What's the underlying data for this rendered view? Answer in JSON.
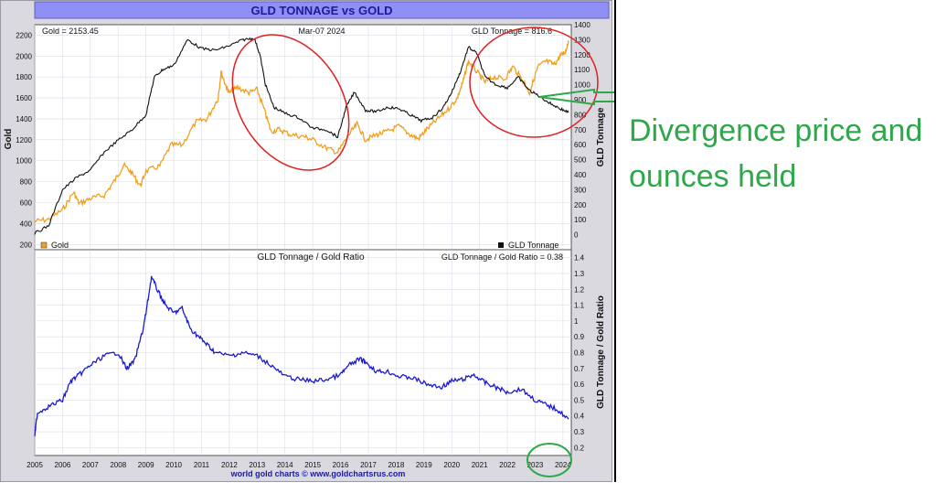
{
  "chart_data": [
    {
      "type": "line",
      "title": "GLD TONNAGE vs GOLD",
      "date_label": "Mar-07  2024",
      "readouts": {
        "left": "Gold = 2153.45",
        "right": "GLD Tonnage = 816.6"
      },
      "ylabel_left": "Gold",
      "ylabel_right": "GLD Tonnage",
      "ylim_left": [
        150,
        2300
      ],
      "ylim_right": [
        -100,
        1400
      ],
      "yticks_left": [
        "200",
        "400",
        "600",
        "800",
        "1000",
        "1200",
        "1400",
        "1600",
        "1800",
        "2000",
        "2200"
      ],
      "yticks_right": [
        "0",
        "100",
        "200",
        "300",
        "400",
        "500",
        "600",
        "700",
        "800",
        "900",
        "1000",
        "1100",
        "1200",
        "1300",
        "1400"
      ],
      "legend": {
        "gold": "Gold",
        "tonnage": "GLD Tonnage"
      },
      "series": [
        {
          "name": "Gold",
          "axis": "left",
          "color": "#f0a020",
          "x": [
            2005.0,
            2005.5,
            2006.0,
            2006.4,
            2006.6,
            2007.0,
            2007.5,
            2007.9,
            2008.2,
            2008.5,
            2008.8,
            2009.0,
            2009.5,
            2009.9,
            2010.3,
            2010.8,
            2011.2,
            2011.6,
            2011.7,
            2011.9,
            2012.0,
            2012.3,
            2012.7,
            2013.0,
            2013.3,
            2013.5,
            2013.8,
            2014.2,
            2014.7,
            2015.0,
            2015.5,
            2015.9,
            2016.3,
            2016.6,
            2016.9,
            2017.3,
            2017.7,
            2018.1,
            2018.5,
            2018.8,
            2019.1,
            2019.5,
            2019.9,
            2020.2,
            2020.4,
            2020.6,
            2020.9,
            2021.2,
            2021.5,
            2021.9,
            2022.2,
            2022.6,
            2022.8,
            2023.1,
            2023.4,
            2023.7,
            2023.9,
            2024.1,
            2024.2
          ],
          "y": [
            420,
            440,
            530,
            700,
            590,
            640,
            670,
            820,
            960,
            880,
            760,
            900,
            950,
            1150,
            1150,
            1370,
            1400,
            1600,
            1850,
            1700,
            1650,
            1700,
            1650,
            1680,
            1450,
            1280,
            1300,
            1250,
            1230,
            1200,
            1120,
            1080,
            1250,
            1350,
            1200,
            1250,
            1280,
            1330,
            1250,
            1210,
            1300,
            1400,
            1500,
            1600,
            1750,
            1950,
            1850,
            1750,
            1800,
            1780,
            1900,
            1750,
            1650,
            1900,
            1950,
            1920,
            2000,
            2050,
            2150
          ]
        },
        {
          "name": "GLD Tonnage",
          "axis": "right",
          "color": "#111111",
          "x": [
            2005.0,
            2005.5,
            2006.0,
            2006.5,
            2007.0,
            2007.5,
            2008.0,
            2008.5,
            2009.0,
            2009.3,
            2009.6,
            2010.0,
            2010.5,
            2011.0,
            2011.5,
            2012.0,
            2012.5,
            2012.9,
            2013.1,
            2013.3,
            2013.6,
            2014.0,
            2014.5,
            2015.0,
            2015.5,
            2015.9,
            2016.2,
            2016.5,
            2016.9,
            2017.3,
            2017.7,
            2018.1,
            2018.5,
            2018.9,
            2019.3,
            2019.7,
            2020.0,
            2020.3,
            2020.6,
            2020.9,
            2021.2,
            2021.6,
            2022.0,
            2022.4,
            2022.8,
            2023.1,
            2023.5,
            2023.9,
            2024.2
          ],
          "y": [
            10,
            60,
            300,
            380,
            430,
            550,
            630,
            700,
            800,
            1050,
            1100,
            1130,
            1300,
            1240,
            1230,
            1260,
            1300,
            1310,
            1200,
            1000,
            850,
            810,
            780,
            710,
            700,
            650,
            850,
            950,
            830,
            820,
            850,
            840,
            800,
            760,
            780,
            850,
            950,
            1080,
            1250,
            1210,
            1050,
            1000,
            980,
            1050,
            960,
            930,
            880,
            840,
            815
          ]
        }
      ]
    },
    {
      "type": "line",
      "title": "GLD Tonnage / Gold Ratio",
      "readout": "GLD Tonnage / Gold Ratio = 0.38",
      "ylabel": "GLD Tonnage / Gold Ratio",
      "ylim": [
        0.15,
        1.45
      ],
      "yticks": [
        "0.2",
        "0.3",
        "0.4",
        "0.5",
        "0.6",
        "0.7",
        "0.8",
        "0.9",
        "1",
        "1.1",
        "1.2",
        "1.3",
        "1.4"
      ],
      "xlim": [
        2005.0,
        2024.3
      ],
      "xticks": [
        "2005",
        "2006",
        "2007",
        "2008",
        "2009",
        "2010",
        "2011",
        "2012",
        "2013",
        "2014",
        "2015",
        "2016",
        "2017",
        "2018",
        "2019",
        "2020",
        "2021",
        "2022",
        "2023",
        "2024"
      ],
      "series": [
        {
          "name": "GLD Tonnage / Gold Ratio",
          "color": "#1a1ad0",
          "x": [
            2005.0,
            2005.1,
            2005.5,
            2006.0,
            2006.3,
            2006.6,
            2007.0,
            2007.5,
            2008.0,
            2008.3,
            2008.6,
            2008.9,
            2009.0,
            2009.2,
            2009.4,
            2009.7,
            2010.0,
            2010.3,
            2010.6,
            2010.9,
            2011.2,
            2011.5,
            2012.0,
            2012.5,
            2013.0,
            2013.5,
            2014.0,
            2014.5,
            2015.0,
            2015.5,
            2016.0,
            2016.3,
            2016.7,
            2016.9,
            2017.3,
            2017.7,
            2018.1,
            2018.6,
            2019.1,
            2019.6,
            2020.0,
            2020.4,
            2020.8,
            2021.2,
            2021.6,
            2022.0,
            2022.5,
            2023.0,
            2023.4,
            2023.8,
            2024.2
          ],
          "y": [
            0.28,
            0.42,
            0.46,
            0.5,
            0.62,
            0.66,
            0.72,
            0.78,
            0.8,
            0.7,
            0.75,
            0.95,
            1.05,
            1.28,
            1.2,
            1.1,
            1.05,
            1.08,
            0.95,
            0.9,
            0.85,
            0.8,
            0.78,
            0.8,
            0.78,
            0.72,
            0.65,
            0.63,
            0.62,
            0.63,
            0.66,
            0.72,
            0.76,
            0.74,
            0.68,
            0.68,
            0.65,
            0.64,
            0.6,
            0.58,
            0.62,
            0.63,
            0.66,
            0.61,
            0.58,
            0.55,
            0.57,
            0.5,
            0.47,
            0.44,
            0.38
          ]
        }
      ]
    }
  ],
  "footer": "world gold charts © www.goldchartsrus.com",
  "annotation": {
    "line1": "Divergence price and",
    "line2": "ounces held"
  },
  "colors": {
    "frame": "#d9d9df",
    "title_bar": "#8f8ff5",
    "title_text": "#1c1c9a",
    "annotation": "#2ea84a",
    "circle": "#e02020"
  }
}
